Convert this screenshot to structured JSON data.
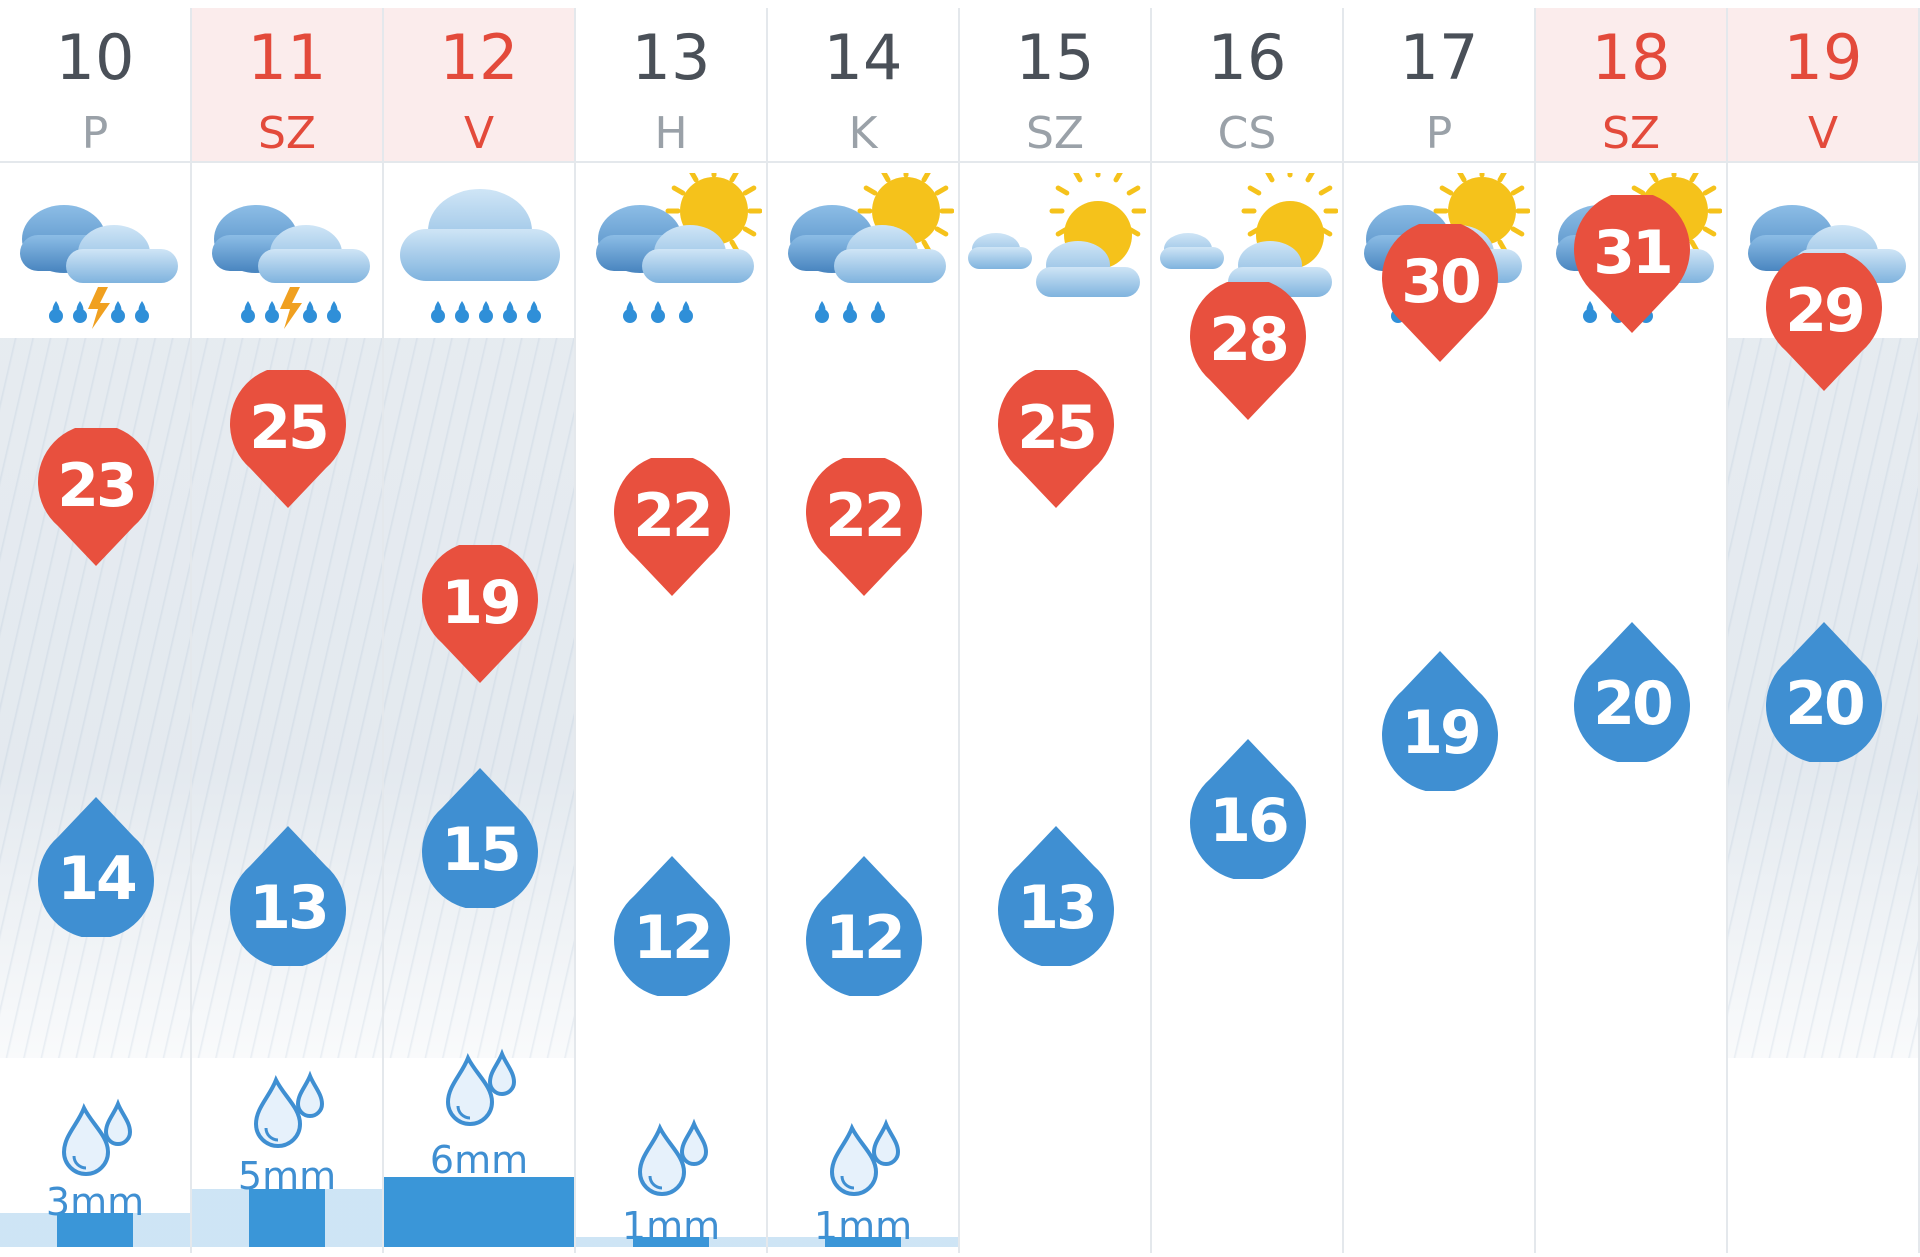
{
  "colors": {
    "max_temp": "#e8503e",
    "min_temp": "#3f8fd2",
    "weekend_text": "#e34a3b",
    "weekend_header_bg": "#fbecec",
    "weekday_text": "#4a5058",
    "dayname_text": "#9aa1a8"
  },
  "days": [
    {
      "date": "10",
      "dow": "P",
      "weekend": false,
      "icon": "rain-thunder-icon",
      "max": "23",
      "min": "14",
      "precip": "3mm",
      "rain_bg": true
    },
    {
      "date": "11",
      "dow": "SZ",
      "weekend": true,
      "icon": "rain-thunder-icon",
      "max": "25",
      "min": "13",
      "precip": "5mm",
      "rain_bg": true
    },
    {
      "date": "12",
      "dow": "V",
      "weekend": true,
      "icon": "heavy-rain-icon",
      "max": "19",
      "min": "15",
      "precip": "6mm",
      "rain_bg": true
    },
    {
      "date": "13",
      "dow": "H",
      "weekend": false,
      "icon": "sun-cloud-rain-icon",
      "max": "22",
      "min": "12",
      "precip": "1mm",
      "rain_bg": false
    },
    {
      "date": "14",
      "dow": "K",
      "weekend": false,
      "icon": "sun-cloud-rain-icon",
      "max": "22",
      "min": "12",
      "precip": "1mm",
      "rain_bg": false
    },
    {
      "date": "15",
      "dow": "SZ",
      "weekend": false,
      "icon": "partly-cloudy-icon",
      "max": "25",
      "min": "13",
      "precip": "",
      "rain_bg": false
    },
    {
      "date": "16",
      "dow": "CS",
      "weekend": false,
      "icon": "partly-cloudy-icon",
      "max": "28",
      "min": "16",
      "precip": "",
      "rain_bg": false
    },
    {
      "date": "17",
      "dow": "P",
      "weekend": false,
      "icon": "sun-cloud-rain-icon",
      "max": "30",
      "min": "19",
      "precip": "",
      "rain_bg": false
    },
    {
      "date": "18",
      "dow": "SZ",
      "weekend": true,
      "icon": "sun-cloud-rain-icon",
      "max": "31",
      "min": "20",
      "precip": "",
      "rain_bg": false
    },
    {
      "date": "19",
      "dow": "V",
      "weekend": true,
      "icon": "rain-thunder-icon",
      "max": "29",
      "min": "20",
      "precip": "",
      "rain_bg": true
    }
  ]
}
